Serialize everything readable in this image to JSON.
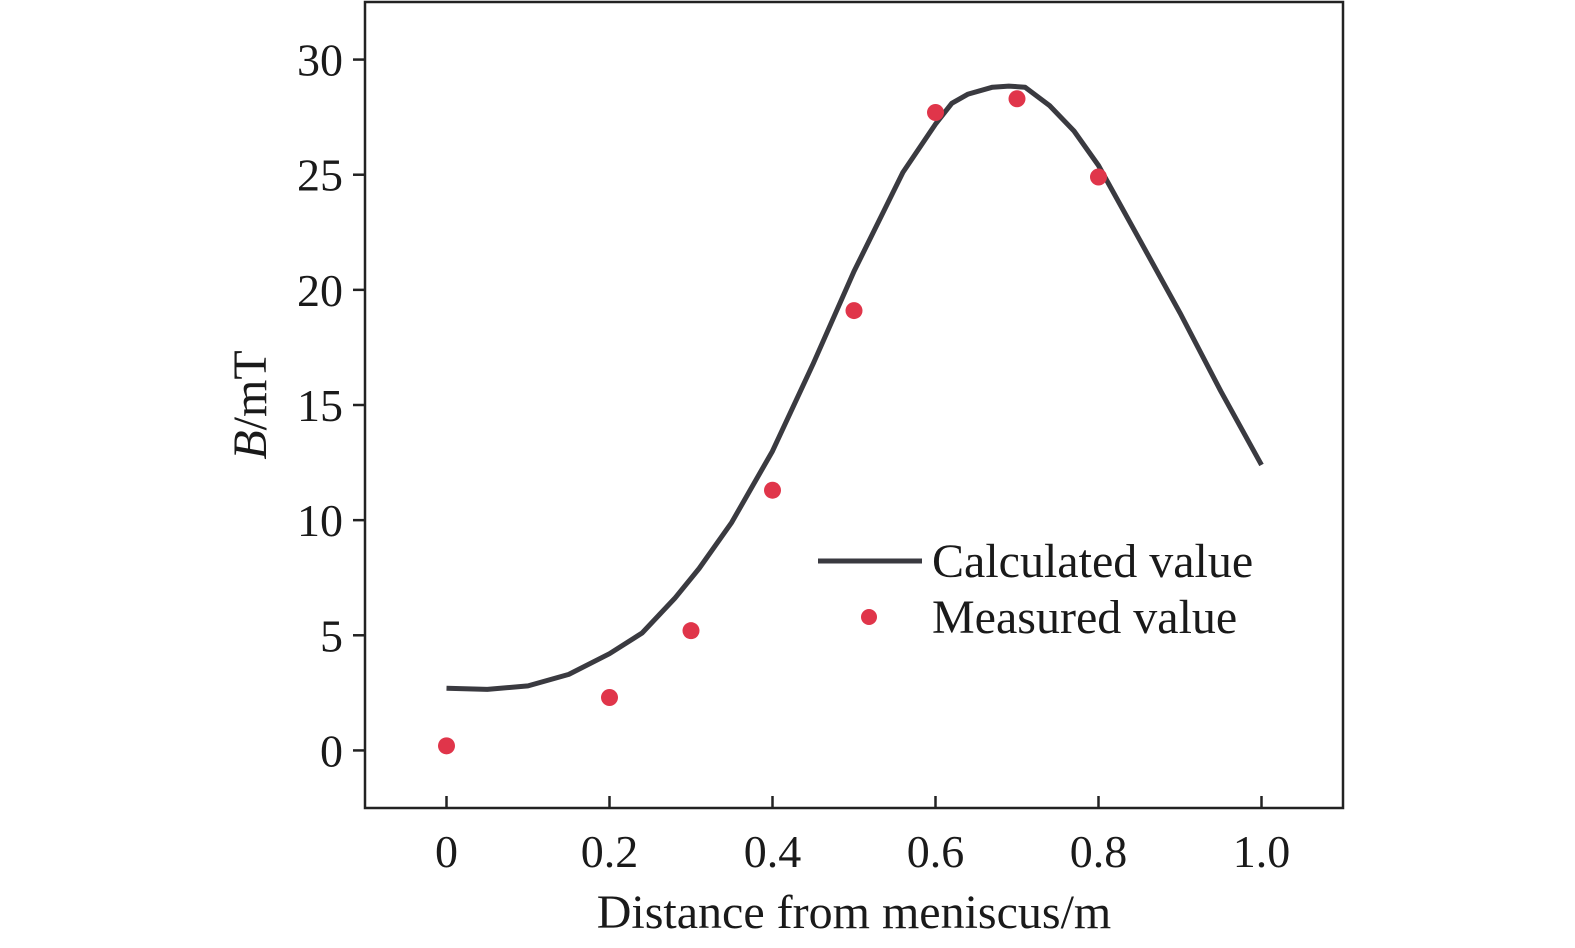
{
  "chart_data": {
    "type": "line",
    "xlabel": "Distance from meniscus/m",
    "ylabel": {
      "symbol": "B",
      "unit": "/mT"
    },
    "xlim": [
      -0.1,
      1.1
    ],
    "ylim": [
      -2.5,
      32.5
    ],
    "x_ticks": [
      0,
      0.2,
      0.4,
      0.6,
      0.8,
      1.0
    ],
    "x_tick_labels": [
      "0",
      "0.2",
      "0.4",
      "0.6",
      "0.8",
      "1.0"
    ],
    "y_ticks": [
      0,
      5,
      10,
      15,
      20,
      25,
      30
    ],
    "y_tick_labels": [
      "0",
      "5",
      "10",
      "15",
      "20",
      "25",
      "30"
    ],
    "grid": false,
    "legend_position": "center-right",
    "series": [
      {
        "name": "Calculated value",
        "kind": "line",
        "color": "#3a3a40",
        "x": [
          0,
          0.05,
          0.1,
          0.15,
          0.2,
          0.24,
          0.28,
          0.31,
          0.35,
          0.4,
          0.45,
          0.5,
          0.56,
          0.6,
          0.62,
          0.64,
          0.67,
          0.69,
          0.71,
          0.74,
          0.77,
          0.8,
          0.85,
          0.9,
          0.95,
          1.0
        ],
        "y": [
          2.7,
          2.65,
          2.8,
          3.3,
          4.2,
          5.1,
          6.6,
          7.9,
          9.9,
          13.0,
          16.8,
          20.8,
          25.1,
          27.2,
          28.1,
          28.5,
          28.8,
          28.85,
          28.8,
          28.0,
          26.9,
          25.4,
          22.2,
          19.0,
          15.6,
          12.4
        ]
      },
      {
        "name": "Measured value",
        "kind": "scatter",
        "color": "#e0354a",
        "x": [
          0,
          0.2,
          0.3,
          0.4,
          0.5,
          0.6,
          0.7,
          0.8
        ],
        "y": [
          0.2,
          2.3,
          5.2,
          11.3,
          19.1,
          27.7,
          28.3,
          24.9
        ]
      }
    ]
  }
}
